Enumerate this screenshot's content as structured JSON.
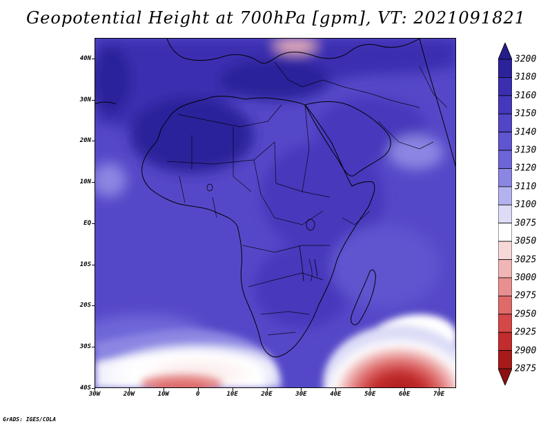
{
  "title": "Geopotential Height at 700hPa [gpm], VT: 2021091821",
  "credit": "GrADS: IGES/COLA",
  "map": {
    "lon_range": [
      -30,
      75
    ],
    "lat_range": [
      -40,
      45
    ],
    "projection": "latlon",
    "lat_ticks": [
      {
        "value": 40,
        "label": "40N"
      },
      {
        "value": 30,
        "label": "30N"
      },
      {
        "value": 20,
        "label": "20N"
      },
      {
        "value": 10,
        "label": "10N"
      },
      {
        "value": 0,
        "label": "EQ"
      },
      {
        "value": -10,
        "label": "10S"
      },
      {
        "value": -20,
        "label": "20S"
      },
      {
        "value": -30,
        "label": "30S"
      },
      {
        "value": -40,
        "label": "40S"
      }
    ],
    "lon_ticks": [
      {
        "value": -30,
        "label": "30W"
      },
      {
        "value": -20,
        "label": "20W"
      },
      {
        "value": -10,
        "label": "10W"
      },
      {
        "value": 0,
        "label": "0"
      },
      {
        "value": 10,
        "label": "10E"
      },
      {
        "value": 20,
        "label": "20E"
      },
      {
        "value": 30,
        "label": "30E"
      },
      {
        "value": 40,
        "label": "40E"
      },
      {
        "value": 50,
        "label": "50E"
      },
      {
        "value": 60,
        "label": "60E"
      },
      {
        "value": 70,
        "label": "70E"
      }
    ]
  },
  "colorbar": {
    "levels": [
      "3200",
      "3180",
      "3160",
      "3150",
      "3140",
      "3130",
      "3120",
      "3110",
      "3100",
      "3075",
      "3050",
      "3025",
      "3000",
      "2975",
      "2950",
      "2925",
      "2900",
      "2875"
    ],
    "colors": [
      "#241d8c",
      "#2c229a",
      "#3b2fb0",
      "#4638bc",
      "#5245c6",
      "#5f55cf",
      "#6e66d8",
      "#8b86e2",
      "#b4b2ee",
      "#dcdcf7",
      "#ffffff",
      "#f7d8d8",
      "#f0b5b5",
      "#e89090",
      "#de6a6a",
      "#d44848",
      "#c22c2c",
      "#a81a1a",
      "#8c1010"
    ]
  },
  "field_features": [
    {
      "name": "subtropical-high-nw",
      "value": 3170
    },
    {
      "name": "sahara-high",
      "value": 3170
    },
    {
      "name": "arabian-ridge",
      "value": 3150
    },
    {
      "name": "indian-ocean-light-patch",
      "value": 3115
    },
    {
      "name": "atlantic-light-patch",
      "value": 3120
    },
    {
      "name": "south-atlantic-trough",
      "value": 3030
    },
    {
      "name": "south-indian-low",
      "value": 2890
    }
  ]
}
